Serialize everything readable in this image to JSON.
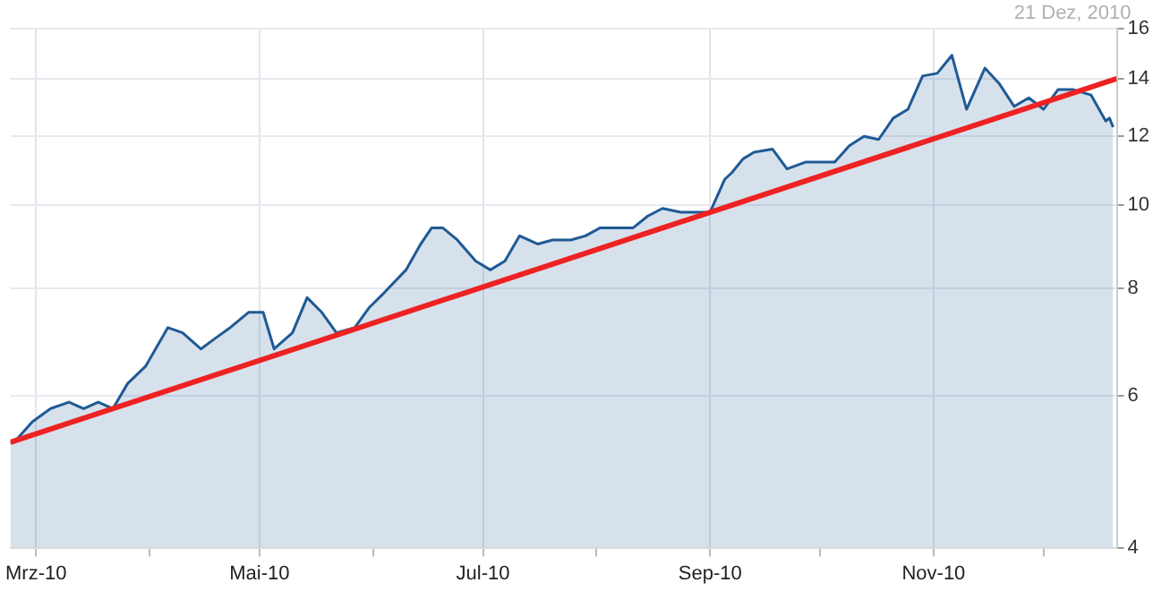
{
  "chart_data": {
    "type": "area",
    "annotations": [
      "21 Dez, 2010"
    ],
    "log": "y",
    "grid": true,
    "legend": false,
    "marker": "none",
    "line_style": "solid",
    "xlim": [
      "2010-02-22",
      "2010-12-21"
    ],
    "xticks": [
      {
        "value": "2010-03-01",
        "label": "Mrz-10"
      },
      {
        "value": "2010-04-01",
        "label": null
      },
      {
        "value": "2010-05-01",
        "label": "Mai-10"
      },
      {
        "value": "2010-06-01",
        "label": null
      },
      {
        "value": "2010-07-01",
        "label": "Jul-10"
      },
      {
        "value": "2010-08-01",
        "label": null
      },
      {
        "value": "2010-09-01",
        "label": "Sep-10"
      },
      {
        "value": "2010-10-01",
        "label": null
      },
      {
        "value": "2010-11-01",
        "label": "Nov-10"
      },
      {
        "value": "2010-12-01",
        "label": null
      }
    ],
    "ylim": [
      4,
      16
    ],
    "yticks": [
      4,
      6,
      8,
      10,
      12,
      14,
      16
    ],
    "series": [
      {
        "type": "area",
        "color": "#1f5a94",
        "x": [
          "2010-02-22",
          "2010-02-23",
          "2010-02-28",
          "2010-03-05",
          "2010-03-10",
          "2010-03-14",
          "2010-03-18",
          "2010-03-22",
          "2010-03-26",
          "2010-03-31",
          "2010-04-06",
          "2010-04-10",
          "2010-04-15",
          "2010-04-19",
          "2010-04-23",
          "2010-04-28",
          "2010-05-02",
          "2010-05-05",
          "2010-05-10",
          "2010-05-14",
          "2010-05-18",
          "2010-05-22",
          "2010-05-27",
          "2010-05-31",
          "2010-06-04",
          "2010-06-10",
          "2010-06-14",
          "2010-06-17",
          "2010-06-20",
          "2010-06-24",
          "2010-06-29",
          "2010-07-03",
          "2010-07-07",
          "2010-07-11",
          "2010-07-16",
          "2010-07-20",
          "2010-07-25",
          "2010-07-29",
          "2010-08-02",
          "2010-08-06",
          "2010-08-11",
          "2010-08-15",
          "2010-08-19",
          "2010-08-24",
          "2010-08-28",
          "2010-09-01",
          "2010-09-05",
          "2010-09-07",
          "2010-09-10",
          "2010-09-13",
          "2010-09-18",
          "2010-09-22",
          "2010-09-27",
          "2010-10-01",
          "2010-10-05",
          "2010-10-09",
          "2010-10-13",
          "2010-10-17",
          "2010-10-21",
          "2010-10-25",
          "2010-10-29",
          "2010-11-02",
          "2010-11-06",
          "2010-11-10",
          "2010-11-15",
          "2010-11-19",
          "2010-11-23",
          "2010-11-27",
          "2010-12-01",
          "2010-12-05",
          "2010-12-09",
          "2010-12-14",
          "2010-12-18",
          "2010-12-19",
          "2010-12-20"
        ],
        "values": [
          5.3,
          5.3,
          5.6,
          5.8,
          5.9,
          5.8,
          5.9,
          5.8,
          6.2,
          6.5,
          7.2,
          7.1,
          6.8,
          7.0,
          7.2,
          7.5,
          7.5,
          6.8,
          7.1,
          7.8,
          7.5,
          7.1,
          7.2,
          7.6,
          7.9,
          8.4,
          9.0,
          9.4,
          9.4,
          9.1,
          8.6,
          8.4,
          8.6,
          9.2,
          9.0,
          9.1,
          9.1,
          9.2,
          9.4,
          9.4,
          9.4,
          9.7,
          9.9,
          9.8,
          9.8,
          9.8,
          10.7,
          10.9,
          11.3,
          11.5,
          11.6,
          11.0,
          11.2,
          11.2,
          11.2,
          11.7,
          12.0,
          11.9,
          12.6,
          12.9,
          14.1,
          14.2,
          14.9,
          12.9,
          14.4,
          13.8,
          13.0,
          13.3,
          12.9,
          13.6,
          13.6,
          13.4,
          12.5,
          12.6,
          12.3
        ]
      },
      {
        "type": "line",
        "color": "#ee2222",
        "x": [
          "2010-02-22",
          "2010-12-21"
        ],
        "values": [
          5.3,
          14.0
        ]
      }
    ]
  }
}
